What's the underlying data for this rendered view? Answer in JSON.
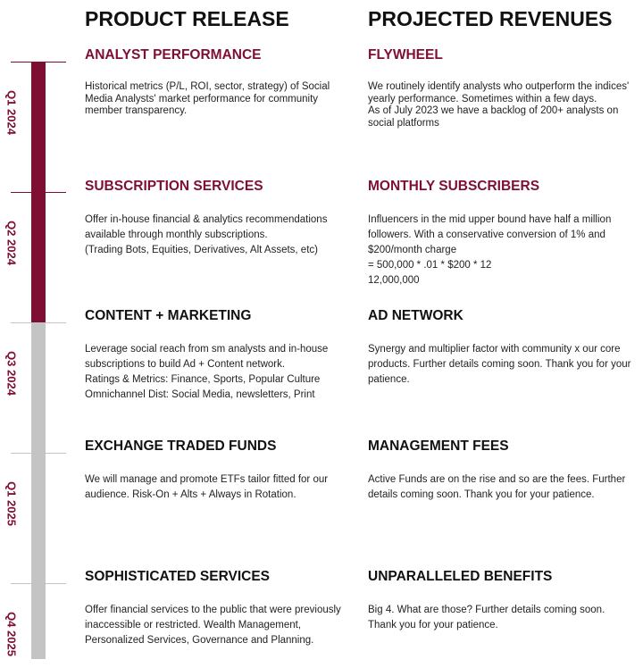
{
  "headers": {
    "left": "PRODUCT RELEASE",
    "right": "PROJECTED REVENUES"
  },
  "colors": {
    "accent": "#7f0f32",
    "inactive": "#c4c4c4"
  },
  "timeline": {
    "progress_quarters_complete": 2,
    "quarters": [
      "Q1 2024",
      "Q2 2024",
      "Q3 2024",
      "Q1 2025",
      "Q4 2025"
    ]
  },
  "rows": [
    {
      "left": {
        "title": "ANALYST PERFORMANCE",
        "body": "Historical metrics (P/L, ROI, sector, strategy) of Social Media Analysts' market performance for community member transparency."
      },
      "right": {
        "title": "FLYWHEEL",
        "body": "We routinely identify analysts who outperform the indices' yearly performance. Sometimes within a few days.\nAs of July 2023 we have a backlog of 200+ analysts on social platforms"
      }
    },
    {
      "left": {
        "title": "SUBSCRIPTION SERVICES",
        "body": "Offer in-house financial & analytics recommendations available through monthly subscriptions.\n(Trading Bots, Equities, Derivatives, Alt Assets, etc)"
      },
      "right": {
        "title": "MONTHLY SUBSCRIBERS",
        "body": "Influencers in the mid upper bound have half a million followers. With a conservative conversion of 1% and $200/month charge\n= 500,000 * .01 * $200 * 12\n12,000,000"
      }
    },
    {
      "left": {
        "title": "CONTENT + MARKETING",
        "body": "Leverage social reach from sm analysts and in-house subscriptions to build Ad + Content network.\nRatings & Metrics: Finance, Sports, Popular Culture\nOmnichannel Dist: Social Media, newsletters, Print"
      },
      "right": {
        "title": "AD NETWORK",
        "body": "Synergy and multiplier factor with community x our core products. Further details coming soon. Thank you for your patience."
      }
    },
    {
      "left": {
        "title": "EXCHANGE TRADED FUNDS",
        "body": "We will manage and promote ETFs tailor fitted for our audience. Risk-On + Alts + Always in Rotation."
      },
      "right": {
        "title": "MANAGEMENT FEES",
        "body": "Active Funds are on the rise and so are the fees. Further details coming soon. Thank you for your patience."
      }
    },
    {
      "left": {
        "title": "SOPHISTICATED SERVICES",
        "body": "Offer financial services to the public that were previously inaccessible or restricted. Wealth Management, Personalized Services, Governance and Planning."
      },
      "right": {
        "title": "UNPARALLELED BENEFITS",
        "body": "Big 4. What are those? Further details coming soon. Thank you for your patience."
      }
    }
  ]
}
